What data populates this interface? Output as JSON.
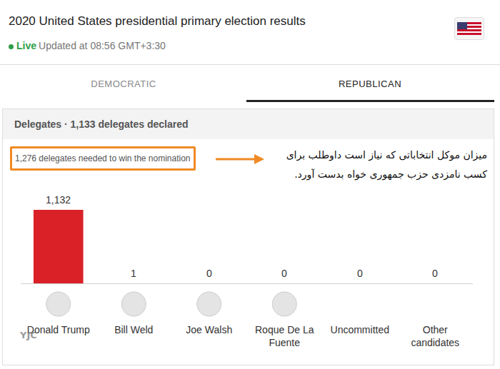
{
  "header": {
    "title": "2020 United States presidential primary election results",
    "live": "Live",
    "updated": "Updated at 08:56 GMT+3:30"
  },
  "tabs": [
    "DEMOCRATIC",
    "REPUBLICAN"
  ],
  "panel": {
    "heading": "Delegates · 1,133 delegates declared",
    "threshold_note": "1,276 delegates needed to win the nomination",
    "annotation": "میزان موکل انتخاباتی که نیاز است داوطلب برای کسب نامزدی حزب جمهوری خواه بدست آورد."
  },
  "watermark": "YJC",
  "chart_data": {
    "type": "bar",
    "categories": [
      "Donald Trump",
      "Bill Weld",
      "Joe Walsh",
      "Roque De La Fuente",
      "Uncommitted",
      "Other candidates"
    ],
    "values": [
      1132,
      1,
      0,
      0,
      0,
      0
    ],
    "value_labels": [
      "1,132",
      "1",
      "0",
      "0",
      "0",
      "0"
    ],
    "color": "#db2128",
    "ylim": [
      0,
      1132
    ],
    "grid": false,
    "data_labels": true,
    "tick_labels": "x"
  }
}
